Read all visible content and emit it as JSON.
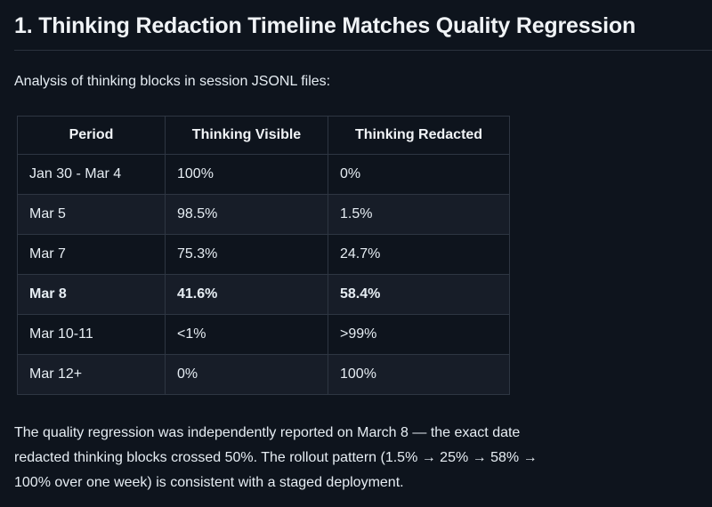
{
  "theme": {
    "background": "#0e141d",
    "row_alt_background": "#171d28",
    "table_border": "#2e3642",
    "heading_rule": "#2b323d",
    "text": "#e6edf3",
    "heading_text": "#f0f3f6"
  },
  "heading": "1. Thinking Redaction Timeline Matches Quality Regression",
  "intro": "Analysis of thinking blocks in session JSONL files:",
  "table": {
    "columns": [
      "Period",
      "Thinking Visible",
      "Thinking Redacted"
    ],
    "rows": [
      {
        "period": "Jan 30 - Mar 4",
        "visible": "100%",
        "redacted": "0%",
        "bold": false
      },
      {
        "period": "Mar 5",
        "visible": "98.5%",
        "redacted": "1.5%",
        "bold": false
      },
      {
        "period": "Mar 7",
        "visible": "75.3%",
        "redacted": "24.7%",
        "bold": false
      },
      {
        "period": "Mar 8",
        "visible": "41.6%",
        "redacted": "58.4%",
        "bold": true
      },
      {
        "period": "Mar 10-11",
        "visible": "<1%",
        "redacted": ">99%",
        "bold": false
      },
      {
        "period": "Mar 12+",
        "visible": "0%",
        "redacted": "100%",
        "bold": false
      }
    ]
  },
  "footer_lines": [
    "The quality regression was independently reported on March 8 — the exact date",
    "redacted thinking blocks crossed 50%. The rollout pattern (1.5% → 25% → 58% →",
    "100% over one week) is consistent with a staged deployment."
  ]
}
